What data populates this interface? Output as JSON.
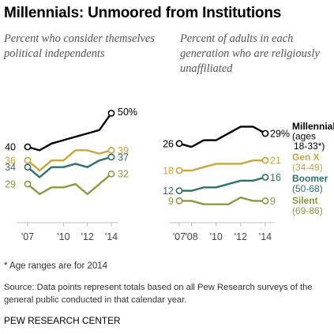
{
  "title": "Millennials: Unmoored from Institutions",
  "colors": {
    "Millennial": "#000000",
    "Gen X": "#c9a53a",
    "Boomer": "#2f706c",
    "Silent": "#8b9a3c",
    "axis": "#bfbfbf"
  },
  "chart_data": [
    {
      "type": "line",
      "subtitle": "Percent who consider themselves political independents",
      "x": [
        2007,
        2008,
        2009,
        2010,
        2011,
        2012,
        2013,
        2014
      ],
      "xticks": [
        "'07",
        "'10",
        "'12",
        "'14"
      ],
      "ylim": [
        20,
        55
      ],
      "series": [
        {
          "name": "Millennial",
          "values": [
            40,
            39,
            41,
            42,
            43,
            44,
            45,
            50
          ],
          "start_label": "40",
          "end_label": "50%"
        },
        {
          "name": "Gen X",
          "values": [
            36,
            33,
            36,
            36,
            39,
            39,
            38,
            39
          ],
          "start_label": "36",
          "end_label": "39"
        },
        {
          "name": "Boomer",
          "values": [
            34,
            31,
            34,
            34,
            35,
            34,
            36,
            37
          ],
          "start_label": "34",
          "end_label": "37"
        },
        {
          "name": "Silent",
          "values": [
            29,
            26,
            28,
            28,
            29,
            26,
            29,
            32
          ],
          "start_label": "29",
          "end_label": "32"
        }
      ]
    },
    {
      "type": "line",
      "subtitle": "Percent of adults in each generation who are religiously unaffiliated",
      "x": [
        2007,
        2008,
        2009,
        2010,
        2011,
        2012,
        2013,
        2014
      ],
      "xticks": [
        "'07",
        "'08",
        "'10",
        "'12",
        "'14"
      ],
      "ylim": [
        5,
        40
      ],
      "series": [
        {
          "name": "Millennial",
          "range": "(ages 18-33*)",
          "values": [
            26,
            25,
            27,
            27,
            29,
            31,
            31,
            29
          ],
          "start_label": "26",
          "end_label": "29%"
        },
        {
          "name": "Gen X",
          "range": "(34-49)",
          "values": [
            18,
            18,
            19,
            20,
            20,
            20,
            21,
            21
          ],
          "start_label": "18",
          "end_label": "21"
        },
        {
          "name": "Boomer",
          "range": "(50-68)",
          "values": [
            12,
            12,
            13,
            13,
            14,
            15,
            15,
            16
          ],
          "start_label": "12",
          "end_label": "16"
        },
        {
          "name": "Silent",
          "range": "(69-86)",
          "values": [
            9,
            9,
            8,
            8,
            8,
            10,
            9,
            9
          ],
          "start_label": "9",
          "end_label": "9"
        }
      ]
    }
  ],
  "footnote": "* Age ranges are for 2014",
  "source": "Source: Data points represent totals based on all Pew Research surveys of the general public conducted in that calendar year.",
  "org": "PEW RESEARCH CENTER"
}
